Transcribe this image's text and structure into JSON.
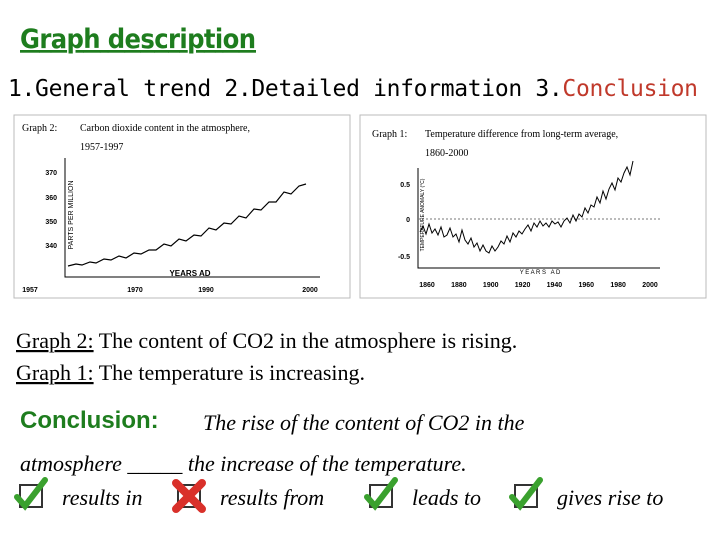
{
  "header": {
    "title": "Graph description",
    "steps": [
      "1.General trend",
      "2.Detailed information",
      "3.",
      "Conclusion"
    ]
  },
  "graphs": [
    {
      "title": "Graph 2:",
      "caption": "Carbon dioxide content in the atmosphere,",
      "years": "1957-1997",
      "y_axis_label": "PARTS PER MILLION",
      "x_axis_label": "YEARS AD",
      "y_ticks": [
        "370",
        "360",
        "350",
        "340"
      ],
      "x_ticks": [
        "1957",
        "1970",
        "1990",
        "2000"
      ]
    },
    {
      "title": "Graph 1:",
      "caption": "Temperature difference from long-term average,",
      "years": "1860-2000",
      "y_axis_label": "TEMPERATURE ANOMALY (°C)",
      "x_axis_label": "Y E A R S   A D",
      "y_ticks": [
        "0.5",
        "0",
        "-0.5"
      ],
      "x_ticks": [
        "1860",
        "1880",
        "1900",
        "1920",
        "1940",
        "1960",
        "1980",
        "2000"
      ]
    }
  ],
  "statements": [
    {
      "label": "Graph 2:",
      "text": " The content of CO2 in the atmosphere is rising."
    },
    {
      "label": "Graph 1:",
      "text": " The temperature is increasing."
    }
  ],
  "conclusion": {
    "label": "Conclusion:",
    "text": "The rise of the content of CO2 in the",
    "text2": "atmosphere _____ the increase of the temperature."
  },
  "options": [
    {
      "text": "results in",
      "correct": true
    },
    {
      "text": "results from",
      "correct": false
    },
    {
      "text": "leads to",
      "correct": true
    },
    {
      "text": "gives rise to",
      "correct": true
    }
  ]
}
